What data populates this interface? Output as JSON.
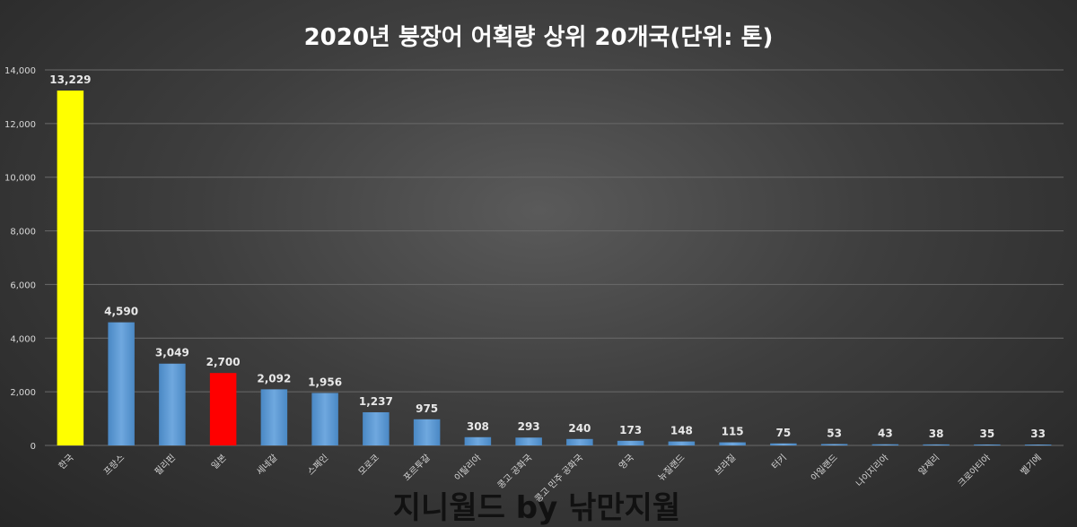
{
  "chart_data": {
    "type": "bar",
    "title": "2020년 붕장어 어획량 상위 20개국(단위: 톤)",
    "categories": [
      "한국",
      "프랑스",
      "필리핀",
      "일본",
      "세네갈",
      "스페인",
      "모로코",
      "포르투갈",
      "이탈리아",
      "콩고 공화국",
      "콩고 민주 공화국",
      "영국",
      "뉴질랜드",
      "브라질",
      "터키",
      "아일랜드",
      "나이지리아",
      "알제리",
      "크로아티아",
      "벨기에"
    ],
    "values": [
      13229,
      4590,
      3049,
      2700,
      2092,
      1956,
      1237,
      975,
      308,
      293,
      240,
      173,
      148,
      115,
      75,
      53,
      43,
      38,
      35,
      33
    ],
    "data_labels": [
      "13,229",
      "4,590",
      "3,049",
      "2,700",
      "2,092",
      "1,956",
      "1,237",
      "975",
      "308",
      "293",
      "240",
      "173",
      "148",
      "115",
      "75",
      "53",
      "43",
      "38",
      "35",
      "33"
    ],
    "ylim": [
      0,
      14000
    ],
    "yticks": [
      0,
      2000,
      4000,
      6000,
      8000,
      10000,
      12000,
      14000
    ],
    "ytick_labels": [
      "0",
      "2,000",
      "4,000",
      "6,000",
      "8,000",
      "10,000",
      "12,000",
      "14,000"
    ],
    "xlabel": "",
    "ylabel": "",
    "grid": true,
    "legend": "none",
    "colors": {
      "default": "#5b9bd5",
      "highlight_korea": "#ffff00",
      "highlight_japan": "#ff0000",
      "background": "#3e3e3e",
      "text": "#ffffff"
    },
    "bar_colors": [
      "#ffff00",
      "#5b9bd5",
      "#5b9bd5",
      "#ff0000",
      "#5b9bd5",
      "#5b9bd5",
      "#5b9bd5",
      "#5b9bd5",
      "#5b9bd5",
      "#5b9bd5",
      "#5b9bd5",
      "#5b9bd5",
      "#5b9bd5",
      "#5b9bd5",
      "#5b9bd5",
      "#5b9bd5",
      "#5b9bd5",
      "#5b9bd5",
      "#5b9bd5",
      "#5b9bd5"
    ]
  },
  "watermark": "지니월드 by 낚만지월"
}
